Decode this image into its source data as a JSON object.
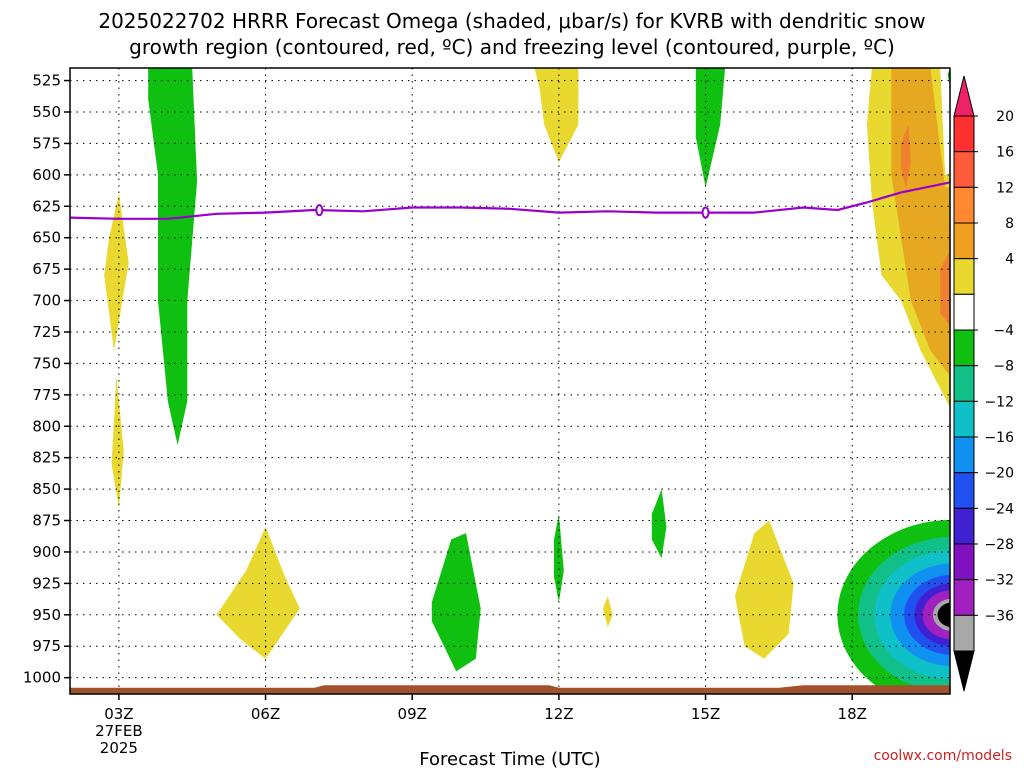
{
  "chart_data": {
    "type": "heatmap",
    "title_line1": "2025022702 HRRR Forecast Omega (shaded, μbar/s) for KVRB with dendritic snow",
    "title_line2": "growth region (contoured, red, ºC) and freezing level (contoured, purple, ºC)",
    "xlabel": "Forecast Time (UTC)",
    "credit": "coolwx.com/models",
    "x_ticks": [
      "03Z",
      "06Z",
      "09Z",
      "12Z",
      "15Z",
      "18Z"
    ],
    "x_tick_hours": [
      3,
      6,
      9,
      12,
      15,
      18
    ],
    "x_first_tick_sub": [
      "27FEB",
      "2025"
    ],
    "x_range_hours": [
      2.0,
      20.0
    ],
    "y_ticks": [
      525,
      550,
      575,
      600,
      625,
      650,
      675,
      700,
      725,
      750,
      775,
      800,
      825,
      850,
      875,
      900,
      925,
      950,
      975,
      1000
    ],
    "y_range_mb": [
      515,
      1013
    ],
    "grid": true,
    "colorbar_labels": [
      "20",
      "16",
      "12",
      "8",
      "4",
      "−4",
      "−8",
      "−12",
      "−16",
      "−20",
      "−24",
      "−28",
      "−32",
      "−36"
    ],
    "colorbar_colors": [
      "#ee2266",
      "#ff3030",
      "#ff5a3a",
      "#ff8830",
      "#f0a020",
      "#e8d830",
      "#ffffff",
      "#10c010",
      "#10c088",
      "#10c0c8",
      "#1090f0",
      "#2050f0",
      "#4020d0",
      "#8010c0",
      "#a020c0",
      "#a8a8a8",
      "#000000"
    ],
    "colors": {
      "ground": "#a0522d",
      "freezing_level": "#9900cc",
      "yellow": "#e8d830",
      "orange": "#e6a820",
      "darkorange": "#f08030",
      "green": "#10c010"
    },
    "freezing_level_mb": [
      [
        2.0,
        634
      ],
      [
        3.0,
        635
      ],
      [
        4.0,
        635
      ],
      [
        5.0,
        631
      ],
      [
        6.0,
        630
      ],
      [
        7.0,
        628
      ],
      [
        8.0,
        629
      ],
      [
        9.0,
        626
      ],
      [
        10.0,
        626
      ],
      [
        11.0,
        627
      ],
      [
        12.0,
        630
      ],
      [
        13.0,
        629
      ],
      [
        14.0,
        630
      ],
      [
        15.0,
        630
      ],
      [
        16.0,
        630
      ],
      [
        17.0,
        626
      ],
      [
        17.7,
        628
      ],
      [
        18.3,
        622
      ],
      [
        19.0,
        614
      ],
      [
        20.0,
        606
      ]
    ],
    "freezing_level_labels_hours": [
      7.1,
      15.0
    ],
    "omega_regions": [
      {
        "fill": "yellow",
        "pts": [
          [
            2.8,
            650
          ],
          [
            3.0,
            615
          ],
          [
            3.2,
            670
          ],
          [
            2.9,
            740
          ],
          [
            2.7,
            680
          ]
        ]
      },
      {
        "fill": "yellow",
        "pts": [
          [
            2.95,
            760
          ],
          [
            3.1,
            820
          ],
          [
            3.0,
            865
          ],
          [
            2.85,
            830
          ]
        ]
      },
      {
        "fill": "green",
        "pts": [
          [
            3.6,
            515
          ],
          [
            4.5,
            515
          ],
          [
            4.6,
            605
          ],
          [
            4.4,
            700
          ],
          [
            4.4,
            780
          ],
          [
            4.2,
            815
          ],
          [
            4.0,
            780
          ],
          [
            3.8,
            700
          ],
          [
            3.8,
            600
          ],
          [
            3.6,
            540
          ]
        ]
      },
      {
        "fill": "yellow",
        "pts": [
          [
            11.5,
            515
          ],
          [
            12.4,
            515
          ],
          [
            12.4,
            560
          ],
          [
            12.0,
            590
          ],
          [
            11.7,
            560
          ],
          [
            11.6,
            530
          ]
        ]
      },
      {
        "fill": "green",
        "pts": [
          [
            14.8,
            515
          ],
          [
            15.4,
            515
          ],
          [
            15.3,
            560
          ],
          [
            15.0,
            610
          ],
          [
            14.8,
            570
          ]
        ]
      },
      {
        "fill": "yellow",
        "pts": [
          [
            5.0,
            950
          ],
          [
            5.6,
            915
          ],
          [
            6.0,
            880
          ],
          [
            6.4,
            920
          ],
          [
            6.7,
            945
          ],
          [
            6.0,
            985
          ],
          [
            5.5,
            970
          ]
        ]
      },
      {
        "fill": "green",
        "pts": [
          [
            9.4,
            940
          ],
          [
            9.8,
            890
          ],
          [
            10.1,
            885
          ],
          [
            10.4,
            945
          ],
          [
            10.3,
            985
          ],
          [
            9.9,
            995
          ],
          [
            9.4,
            955
          ]
        ]
      },
      {
        "fill": "green",
        "pts": [
          [
            11.9,
            890
          ],
          [
            12.0,
            870
          ],
          [
            12.1,
            915
          ],
          [
            12.0,
            940
          ],
          [
            11.9,
            920
          ]
        ]
      },
      {
        "fill": "yellow",
        "pts": [
          [
            12.9,
            945
          ],
          [
            13.0,
            935
          ],
          [
            13.1,
            950
          ],
          [
            13.0,
            960
          ]
        ]
      },
      {
        "fill": "green",
        "pts": [
          [
            13.9,
            870
          ],
          [
            14.1,
            850
          ],
          [
            14.2,
            880
          ],
          [
            14.1,
            905
          ],
          [
            13.9,
            890
          ]
        ]
      },
      {
        "fill": "yellow",
        "pts": [
          [
            15.6,
            935
          ],
          [
            16.0,
            885
          ],
          [
            16.3,
            875
          ],
          [
            16.8,
            925
          ],
          [
            16.7,
            965
          ],
          [
            16.2,
            985
          ],
          [
            15.8,
            975
          ]
        ]
      },
      {
        "fill": "yellow",
        "pts": [
          [
            18.4,
            515
          ],
          [
            19.8,
            515
          ],
          [
            19.9,
            600
          ],
          [
            20.0,
            600
          ],
          [
            20.0,
            785
          ],
          [
            19.4,
            740
          ],
          [
            19.0,
            700
          ],
          [
            18.6,
            680
          ],
          [
            18.4,
            620
          ],
          [
            18.3,
            560
          ]
        ]
      },
      {
        "fill": "orange",
        "pts": [
          [
            18.8,
            515
          ],
          [
            19.6,
            515
          ],
          [
            19.9,
            610
          ],
          [
            20.0,
            610
          ],
          [
            20.0,
            760
          ],
          [
            19.6,
            740
          ],
          [
            19.2,
            700
          ],
          [
            19.0,
            650
          ],
          [
            18.8,
            600
          ]
        ]
      },
      {
        "fill": "darkorange",
        "pts": [
          [
            19.0,
            575
          ],
          [
            19.15,
            560
          ],
          [
            19.2,
            590
          ],
          [
            19.1,
            610
          ],
          [
            19.0,
            595
          ]
        ]
      },
      {
        "fill": "darkorange",
        "pts": [
          [
            19.8,
            675
          ],
          [
            20.0,
            660
          ],
          [
            20.0,
            720
          ],
          [
            19.8,
            710
          ]
        ]
      },
      {
        "fill": "green",
        "pts": [
          [
            20.0,
            515
          ],
          [
            19.95,
            520
          ],
          [
            20.0,
            530
          ]
        ]
      }
    ],
    "downdraft_core_bands": [
      {
        "color": "#10c010",
        "scale": 1.0
      },
      {
        "color": "#10c088",
        "scale": 0.82
      },
      {
        "color": "#10c0c8",
        "scale": 0.68
      },
      {
        "color": "#1090f0",
        "scale": 0.54
      },
      {
        "color": "#2050f0",
        "scale": 0.42
      },
      {
        "color": "#4020d0",
        "scale": 0.33
      },
      {
        "color": "#a020c0",
        "scale": 0.26
      },
      {
        "color": "#a8a8a8",
        "scale": 0.17
      },
      {
        "color": "#000000",
        "scale": 0.13
      }
    ]
  }
}
